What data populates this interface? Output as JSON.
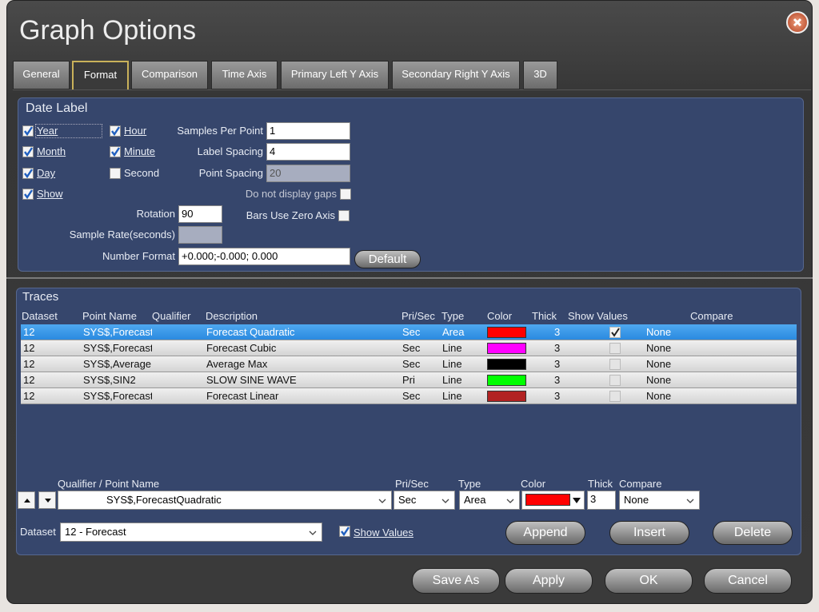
{
  "window": {
    "title": "Graph Options"
  },
  "tabs": {
    "items": [
      "General",
      "Format",
      "Comparison",
      "Time Axis",
      "Primary Left Y Axis",
      "Secondary Right Y Axis",
      "3D"
    ],
    "selected": 1
  },
  "date_label": {
    "title": "Date Label",
    "checkboxes": [
      {
        "label": "Year",
        "checked": true
      },
      {
        "label": "Month",
        "checked": true
      },
      {
        "label": "Day",
        "checked": true
      },
      {
        "label": "Show",
        "checked": true
      },
      {
        "label": "Hour",
        "checked": true
      },
      {
        "label": "Minute",
        "checked": true
      },
      {
        "label": "Second",
        "checked": false
      }
    ],
    "fields": [
      {
        "label": "Samples Per Point",
        "value": 1,
        "enabled": true
      },
      {
        "label": "Label Spacing",
        "value": 4,
        "enabled": true
      },
      {
        "label": "Point Spacing",
        "value": 20,
        "enabled": false
      },
      {
        "label": "Rotation",
        "value": 90,
        "enabled": true
      },
      {
        "label": "Sample Rate(seconds)",
        "enabled": false
      },
      {
        "label": "Number Format",
        "value": "+0.000;-0.000; 0.000",
        "enabled": true
      }
    ],
    "options": [
      {
        "label": "Do not display gaps",
        "checked": false
      },
      {
        "label": "Bars Use Zero Axis",
        "checked": false
      }
    ],
    "default_button": "Default"
  },
  "traces": {
    "title": "Traces",
    "columns": [
      "Dataset",
      "Point Name",
      "Qualifier",
      "Description",
      "Pri/Sec",
      "Type",
      "Color",
      "Thick",
      "Show Values",
      "Compare"
    ],
    "selected": 0,
    "rows": [
      {
        "dataset": 12,
        "point_name": "SYS$,ForecastC",
        "description": "Forecast Quadratic",
        "pri_sec": "Sec",
        "type": "Area",
        "color": "#ff0000",
        "thick": 3,
        "show_values": true,
        "compare": "None"
      },
      {
        "dataset": 12,
        "point_name": "SYS$,ForecastC",
        "description": "Forecast Cubic",
        "pri_sec": "Sec",
        "type": "Line",
        "color": "#ff00ff",
        "thick": 3,
        "show_values": false,
        "compare": "None"
      },
      {
        "dataset": 12,
        "point_name": "SYS$,AverageN",
        "description": "Average Max",
        "pri_sec": "Sec",
        "type": "Line",
        "color": "#000000",
        "thick": 3,
        "show_values": false,
        "compare": "None"
      },
      {
        "dataset": 12,
        "point_name": "SYS$,SIN2",
        "description": "SLOW SINE WAVE",
        "pri_sec": "Pri",
        "type": "Line",
        "color": "#00ff00",
        "thick": 3,
        "show_values": false,
        "compare": "None"
      },
      {
        "dataset": 12,
        "point_name": "SYS$,ForecastL",
        "description": "Forecast Linear",
        "pri_sec": "Sec",
        "type": "Line",
        "color": "#b22222",
        "thick": 3,
        "show_values": false,
        "compare": "None"
      }
    ]
  },
  "editor": {
    "columns": [
      "Qualifier / Point Name",
      "Pri/Sec",
      "Type",
      "Color",
      "Thick",
      "Compare"
    ],
    "point_name": "SYS$,ForecastQuadratic",
    "pri_sec": "Sec",
    "type": "Area",
    "color": "#ff0000",
    "thick": 3,
    "compare": "None",
    "dataset_label": "Dataset",
    "dataset": "12 - Forecast",
    "show_values": {
      "label": "Show Values",
      "checked": true
    },
    "buttons": [
      "Append",
      "Insert",
      "Delete"
    ]
  },
  "footer": {
    "buttons": [
      "Save As",
      "Apply",
      "OK",
      "Cancel"
    ]
  }
}
